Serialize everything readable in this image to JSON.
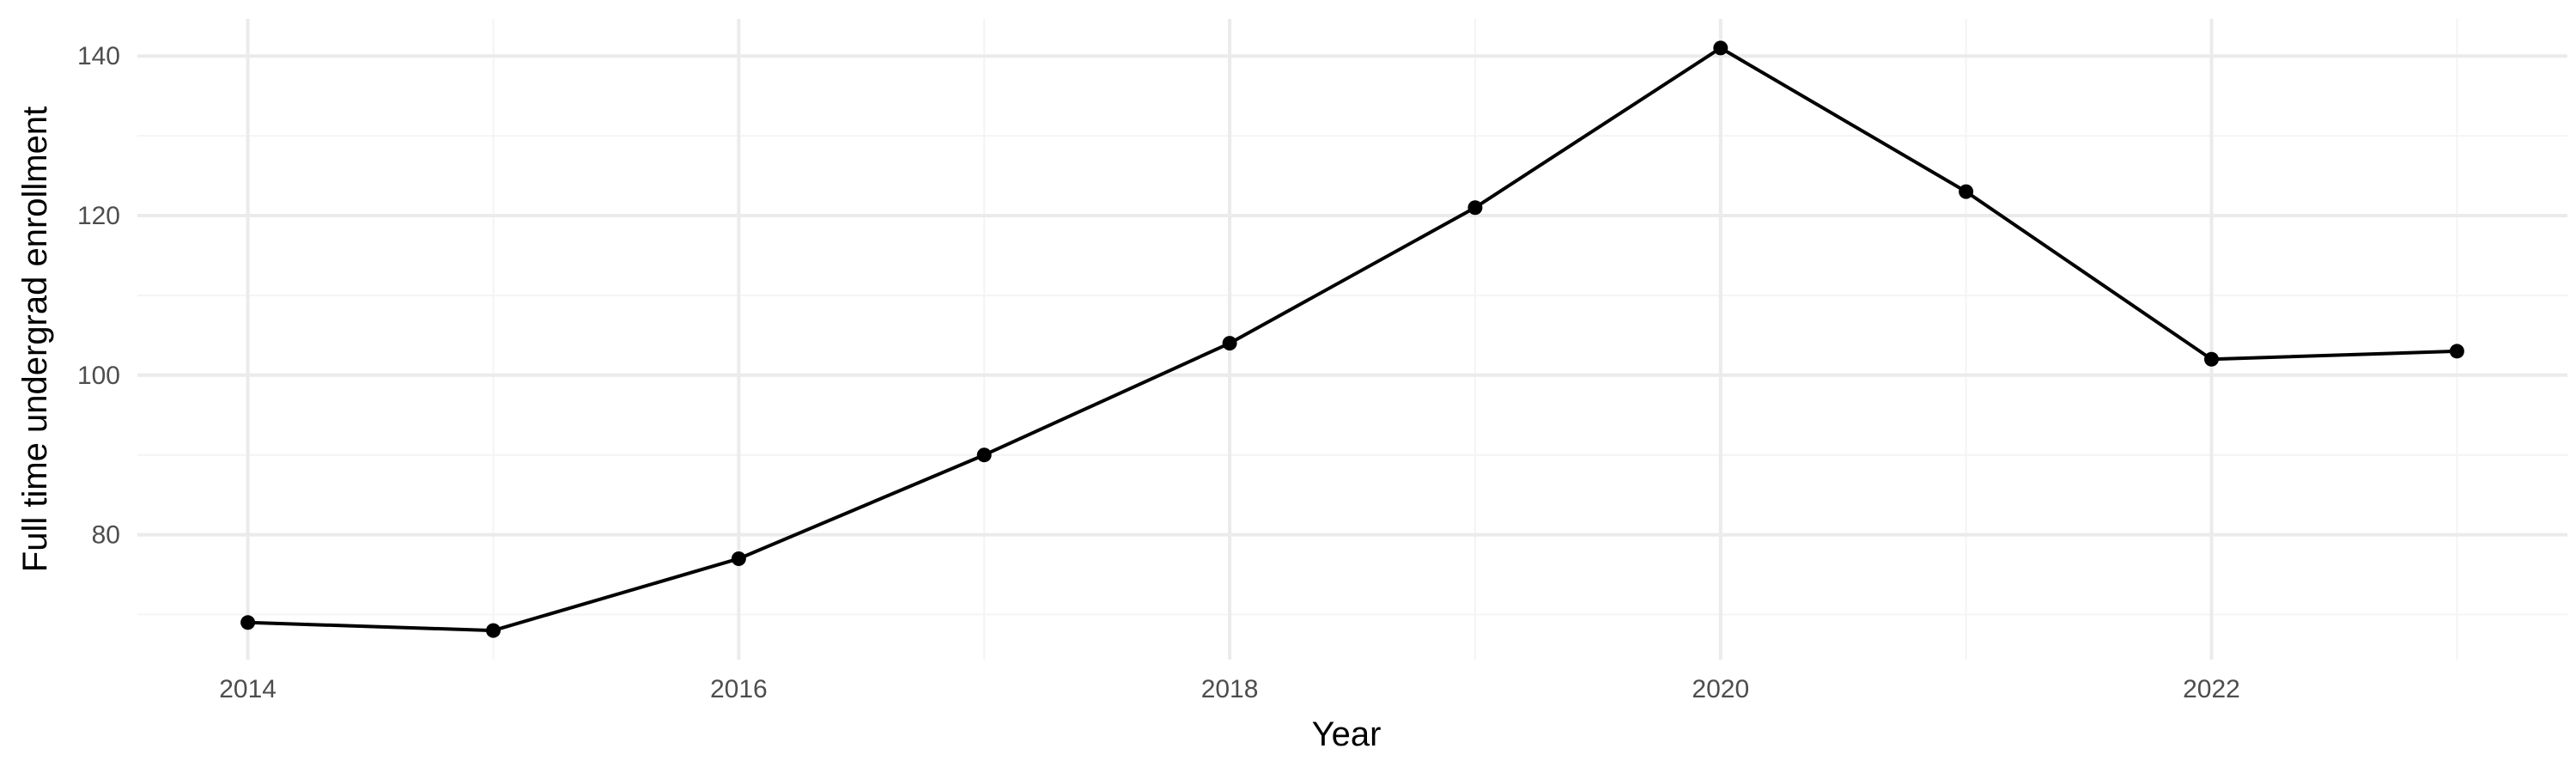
{
  "chart_data": {
    "type": "line",
    "title": "",
    "xlabel": "Year",
    "ylabel": "Full time undergrad enrollment",
    "x": [
      2014,
      2015,
      2016,
      2017,
      2018,
      2019,
      2020,
      2021,
      2022,
      2023
    ],
    "series": [
      {
        "values": [
          69,
          68,
          77,
          90,
          104,
          121,
          141,
          123,
          102,
          103
        ]
      }
    ],
    "xlim": [
      2013.55,
      2023.45
    ],
    "ylim": [
      64.35,
      144.65
    ],
    "x_ticks": [
      2014,
      2016,
      2018,
      2020,
      2022
    ],
    "x_tick_labels": [
      "2014",
      "2016",
      "2018",
      "2020",
      "2022"
    ],
    "x_minor_ticks": [
      2015,
      2017,
      2019,
      2021,
      2023
    ],
    "y_ticks": [
      80,
      100,
      120,
      140
    ],
    "y_tick_labels": [
      "80",
      "100",
      "120",
      "140"
    ],
    "y_minor_ticks": [
      70,
      90,
      110,
      130
    ],
    "grid": true,
    "legend": "none",
    "colors": {
      "line": "#000000",
      "grid_major": "#ebebeb",
      "grid_minor": "#f4f4f4",
      "tick_text": "#4d4d4d"
    }
  }
}
